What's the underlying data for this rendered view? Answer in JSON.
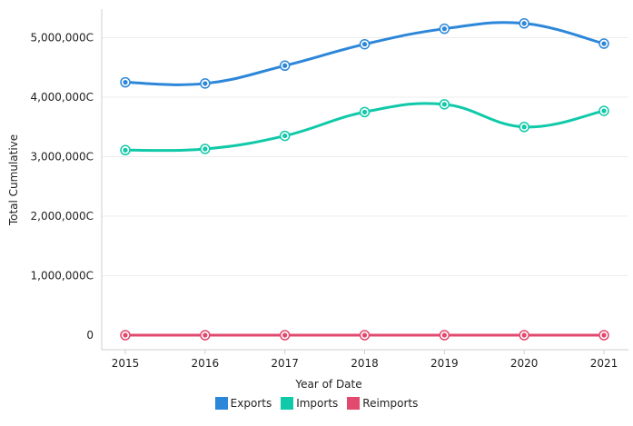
{
  "chart_data": {
    "type": "line",
    "title": "",
    "xlabel": "Year of Date",
    "ylabel": "Total Cumulative",
    "categories": [
      "2015",
      "2016",
      "2017",
      "2018",
      "2019",
      "2020",
      "2021"
    ],
    "ylim": [
      0,
      5300000
    ],
    "yticks": [
      0,
      1000000,
      2000000,
      3000000,
      4000000,
      5000000
    ],
    "ytick_labels": [
      "0",
      "1,000,000C",
      "2,000,000C",
      "3,000,000C",
      "4,000,000C",
      "5,000,000C"
    ],
    "grid": true,
    "legend_position": "bottom-center",
    "series": [
      {
        "name": "Exports",
        "color": "#2d87d9",
        "values": [
          4250000,
          4230000,
          4530000,
          4890000,
          5150000,
          5240000,
          4900000
        ]
      },
      {
        "name": "Imports",
        "color": "#10c9a9",
        "values": [
          3110000,
          3130000,
          3350000,
          3750000,
          3880000,
          3500000,
          3770000
        ]
      },
      {
        "name": "Reimports",
        "color": "#e2496e",
        "values": [
          0,
          0,
          0,
          0,
          0,
          0,
          0
        ]
      }
    ]
  }
}
